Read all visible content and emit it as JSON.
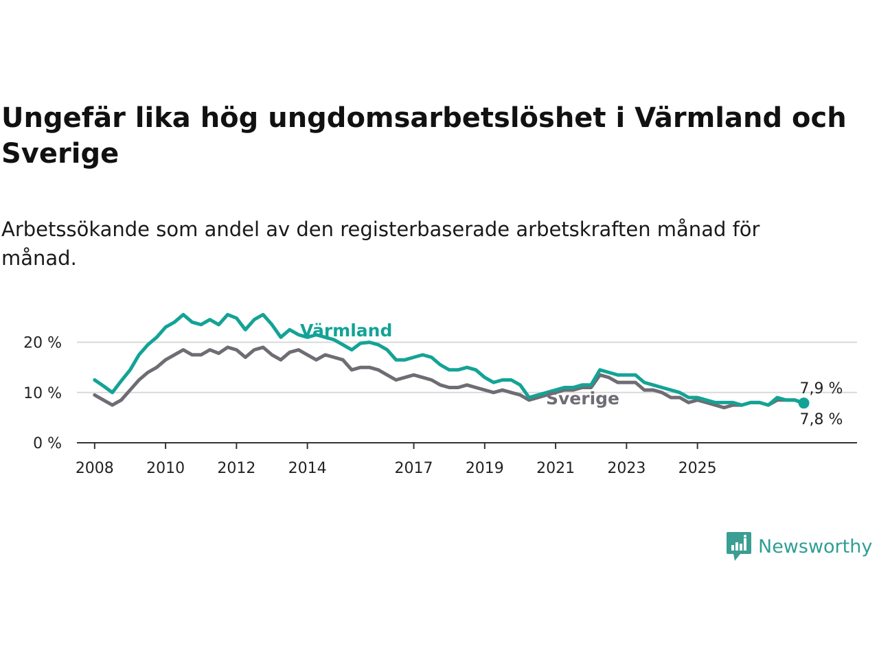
{
  "title": "Ungefär lika hög ungdomsarbetslöshet i Värmland och Sverige",
  "subtitle": "Arbetssökande som andel av den registerbaserade arbetskraften månad för månad.",
  "brand": {
    "name": "Newsworthy",
    "icon": "newsworthy-logo-icon",
    "color": "#3a9e92"
  },
  "chart_data": {
    "type": "line",
    "x_ticks": [
      "2008",
      "2010",
      "2012",
      "2014",
      "2017",
      "2019",
      "2021",
      "2023",
      "2025"
    ],
    "y_ticks": [
      "0 %",
      "10 %",
      "20 %"
    ],
    "ylim": [
      0,
      28
    ],
    "grid": true,
    "series": [
      {
        "name": "Värmland",
        "color": "#13a396",
        "end_label": "7,9 %",
        "points": [
          [
            2008.0,
            12.5
          ],
          [
            2008.25,
            11.3
          ],
          [
            2008.5,
            10.0
          ],
          [
            2008.75,
            12.3
          ],
          [
            2009.0,
            14.5
          ],
          [
            2009.25,
            17.5
          ],
          [
            2009.5,
            19.5
          ],
          [
            2009.75,
            21.0
          ],
          [
            2010.0,
            23.0
          ],
          [
            2010.25,
            24.0
          ],
          [
            2010.5,
            25.5
          ],
          [
            2010.75,
            24.0
          ],
          [
            2011.0,
            23.5
          ],
          [
            2011.25,
            24.5
          ],
          [
            2011.5,
            23.5
          ],
          [
            2011.75,
            25.5
          ],
          [
            2012.0,
            24.8
          ],
          [
            2012.25,
            22.5
          ],
          [
            2012.5,
            24.5
          ],
          [
            2012.75,
            25.5
          ],
          [
            2013.0,
            23.5
          ],
          [
            2013.25,
            21.0
          ],
          [
            2013.5,
            22.5
          ],
          [
            2013.75,
            21.5
          ],
          [
            2014.0,
            21.0
          ],
          [
            2014.25,
            21.5
          ],
          [
            2014.5,
            21.0
          ],
          [
            2014.75,
            20.5
          ],
          [
            2015.0,
            19.5
          ],
          [
            2015.25,
            18.5
          ],
          [
            2015.5,
            19.8
          ],
          [
            2015.75,
            20.0
          ],
          [
            2016.0,
            19.5
          ],
          [
            2016.25,
            18.5
          ],
          [
            2016.5,
            16.5
          ],
          [
            2016.75,
            16.5
          ],
          [
            2017.0,
            17.0
          ],
          [
            2017.25,
            17.5
          ],
          [
            2017.5,
            17.0
          ],
          [
            2017.75,
            15.5
          ],
          [
            2018.0,
            14.5
          ],
          [
            2018.25,
            14.5
          ],
          [
            2018.5,
            15.0
          ],
          [
            2018.75,
            14.5
          ],
          [
            2019.0,
            13.0
          ],
          [
            2019.25,
            12.0
          ],
          [
            2019.5,
            12.5
          ],
          [
            2019.75,
            12.5
          ],
          [
            2020.0,
            11.5
          ],
          [
            2020.25,
            9.0
          ],
          [
            2020.5,
            9.5
          ],
          [
            2020.75,
            10.0
          ],
          [
            2021.0,
            10.5
          ],
          [
            2021.25,
            11.0
          ],
          [
            2021.5,
            11.0
          ],
          [
            2021.75,
            11.5
          ],
          [
            2022.0,
            11.5
          ],
          [
            2022.25,
            14.5
          ],
          [
            2022.5,
            14.0
          ],
          [
            2022.75,
            13.5
          ],
          [
            2023.0,
            13.5
          ],
          [
            2023.25,
            13.5
          ],
          [
            2023.5,
            12.0
          ],
          [
            2023.75,
            11.5
          ],
          [
            2024.0,
            11.0
          ],
          [
            2024.25,
            10.5
          ],
          [
            2024.5,
            10.0
          ],
          [
            2024.75,
            9.0
          ],
          [
            2025.0,
            9.0
          ],
          [
            2025.25,
            8.5
          ],
          [
            2025.5,
            8.0
          ],
          [
            2025.75,
            8.0
          ],
          [
            2026.0,
            8.0
          ],
          [
            2026.25,
            7.5
          ],
          [
            2026.5,
            8.0
          ],
          [
            2026.75,
            8.0
          ],
          [
            2027.0,
            7.5
          ],
          [
            2027.25,
            9.0
          ],
          [
            2027.5,
            8.5
          ],
          [
            2027.75,
            8.5
          ],
          [
            2028.0,
            7.9
          ]
        ]
      },
      {
        "name": "Sverige",
        "color": "#6f6c74",
        "end_label": "7,8 %",
        "points": [
          [
            2008.0,
            9.5
          ],
          [
            2008.25,
            8.5
          ],
          [
            2008.5,
            7.5
          ],
          [
            2008.75,
            8.5
          ],
          [
            2009.0,
            10.5
          ],
          [
            2009.25,
            12.5
          ],
          [
            2009.5,
            14.0
          ],
          [
            2009.75,
            15.0
          ],
          [
            2010.0,
            16.5
          ],
          [
            2010.25,
            17.5
          ],
          [
            2010.5,
            18.5
          ],
          [
            2010.75,
            17.5
          ],
          [
            2011.0,
            17.5
          ],
          [
            2011.25,
            18.5
          ],
          [
            2011.5,
            17.8
          ],
          [
            2011.75,
            19.0
          ],
          [
            2012.0,
            18.5
          ],
          [
            2012.25,
            17.0
          ],
          [
            2012.5,
            18.5
          ],
          [
            2012.75,
            19.0
          ],
          [
            2013.0,
            17.5
          ],
          [
            2013.25,
            16.5
          ],
          [
            2013.5,
            18.0
          ],
          [
            2013.75,
            18.5
          ],
          [
            2014.0,
            17.5
          ],
          [
            2014.25,
            16.5
          ],
          [
            2014.5,
            17.5
          ],
          [
            2014.75,
            17.0
          ],
          [
            2015.0,
            16.5
          ],
          [
            2015.25,
            14.5
          ],
          [
            2015.5,
            15.0
          ],
          [
            2015.75,
            15.0
          ],
          [
            2016.0,
            14.5
          ],
          [
            2016.25,
            13.5
          ],
          [
            2016.5,
            12.5
          ],
          [
            2016.75,
            13.0
          ],
          [
            2017.0,
            13.5
          ],
          [
            2017.25,
            13.0
          ],
          [
            2017.5,
            12.5
          ],
          [
            2017.75,
            11.5
          ],
          [
            2018.0,
            11.0
          ],
          [
            2018.25,
            11.0
          ],
          [
            2018.5,
            11.5
          ],
          [
            2018.75,
            11.0
          ],
          [
            2019.0,
            10.5
          ],
          [
            2019.25,
            10.0
          ],
          [
            2019.5,
            10.5
          ],
          [
            2019.75,
            10.0
          ],
          [
            2020.0,
            9.5
          ],
          [
            2020.25,
            8.5
          ],
          [
            2020.5,
            9.0
          ],
          [
            2020.75,
            9.5
          ],
          [
            2021.0,
            10.0
          ],
          [
            2021.25,
            10.5
          ],
          [
            2021.5,
            10.5
          ],
          [
            2021.75,
            11.0
          ],
          [
            2022.0,
            11.0
          ],
          [
            2022.25,
            13.5
          ],
          [
            2022.5,
            13.0
          ],
          [
            2022.75,
            12.0
          ],
          [
            2023.0,
            12.0
          ],
          [
            2023.25,
            12.0
          ],
          [
            2023.5,
            10.5
          ],
          [
            2023.75,
            10.5
          ],
          [
            2024.0,
            10.0
          ],
          [
            2024.25,
            9.0
          ],
          [
            2024.5,
            9.0
          ],
          [
            2024.75,
            8.0
          ],
          [
            2025.0,
            8.5
          ],
          [
            2025.25,
            8.0
          ],
          [
            2025.5,
            7.5
          ],
          [
            2025.75,
            7.0
          ],
          [
            2026.0,
            7.5
          ],
          [
            2026.25,
            7.5
          ],
          [
            2026.5,
            8.0
          ],
          [
            2026.75,
            8.0
          ],
          [
            2027.0,
            7.5
          ],
          [
            2027.25,
            8.5
          ],
          [
            2027.5,
            8.5
          ],
          [
            2027.75,
            8.5
          ],
          [
            2028.0,
            7.8
          ]
        ]
      }
    ]
  }
}
